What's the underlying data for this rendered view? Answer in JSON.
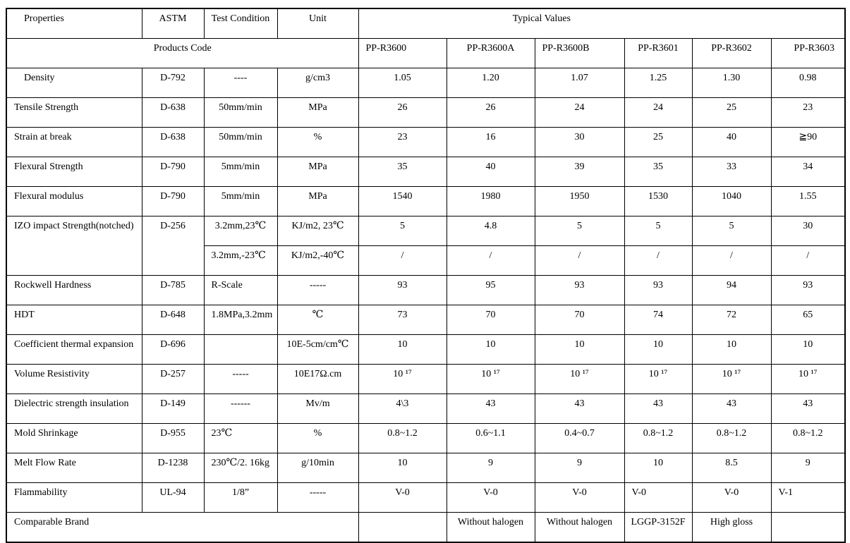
{
  "table": {
    "header": {
      "properties": "Properties",
      "astm": "ASTM",
      "test_condition": "Test Condition",
      "unit": "Unit",
      "typical_values": "Typical Values",
      "products_code_label": "Products Code",
      "product_codes": [
        "PP-R3600",
        "PP-R3600A",
        "PP-R3600B",
        "PP-R3601",
        "PP-R3602",
        "PP-R3603"
      ]
    },
    "rows": [
      {
        "property": "Density",
        "astm": "D-792",
        "test_condition": "----",
        "unit": "g/cm3",
        "values": [
          "1.05",
          "1.20",
          "1.07",
          "1.25",
          "1.30",
          "0.98"
        ]
      },
      {
        "property": "Tensile Strength",
        "astm": "D-638",
        "test_condition": "50mm/min",
        "unit": "MPa",
        "values": [
          "26",
          "26",
          "24",
          "24",
          "25",
          "23"
        ]
      },
      {
        "property": "Strain at break",
        "astm": "D-638",
        "test_condition": "50mm/min",
        "unit": "%",
        "values": [
          "23",
          "16",
          "30",
          "25",
          "40",
          "≧90"
        ]
      },
      {
        "property": "Flexural Strength",
        "astm": "D-790",
        "test_condition": "5mm/min",
        "unit": "MPa",
        "values": [
          "35",
          "40",
          "39",
          "35",
          "33",
          "34"
        ]
      },
      {
        "property": "Flexural modulus",
        "astm": "D-790",
        "test_condition": "5mm/min",
        "unit": "MPa",
        "values": [
          "1540",
          "1980",
          "1950",
          "1530",
          "1040",
          "1.55"
        ]
      },
      {
        "property": "IZO impact Strength(notched)",
        "astm": "D-256",
        "rowspan": 2,
        "test_condition": "3.2mm,23℃",
        "unit": "KJ/m2, 23℃",
        "values": [
          "5",
          "4.8",
          "5",
          "5",
          "5",
          "30"
        ]
      },
      {
        "continuation": true,
        "test_condition": "3.2mm,-23℃",
        "unit": "KJ/m2,-40℃",
        "values": [
          "/",
          "/",
          "/",
          "/",
          "/",
          "/"
        ]
      },
      {
        "property": "Rockwell Hardness",
        "astm": "D-785",
        "test_condition": "R-Scale",
        "unit": "-----",
        "values": [
          "93",
          "95",
          "93",
          "93",
          "94",
          "93"
        ]
      },
      {
        "property": "HDT",
        "astm": "D-648",
        "test_condition": "1.8MPa,3.2mm",
        "unit": "℃",
        "values": [
          "73",
          "70",
          "70",
          "74",
          "72",
          "65"
        ]
      },
      {
        "property": "Coefficient thermal expansion",
        "astm": "D-696",
        "test_condition": "",
        "unit": "10E-5cm/cm℃",
        "values": [
          "10",
          "10",
          "10",
          "10",
          "10",
          "10"
        ]
      },
      {
        "property": "Volume Resistivity",
        "astm": "D-257",
        "test_condition": "-----",
        "unit": "10E17Ω.cm",
        "values": [
          "10 ¹⁷",
          "10 ¹⁷",
          "10 ¹⁷",
          "10 ¹⁷",
          "10 ¹⁷",
          "10 ¹⁷"
        ]
      },
      {
        "property": "Dielectric strength insulation",
        "astm": "D-149",
        "test_condition": "------",
        "unit": "Mv/m",
        "values": [
          "4\\3",
          "43",
          "43",
          "43",
          "43",
          "43"
        ]
      },
      {
        "property": "Mold Shrinkage",
        "astm": "D-955",
        "test_condition": "23℃",
        "unit": "%",
        "values": [
          "0.8~1.2",
          "0.6~1.1",
          "0.4~0.7",
          "0.8~1.2",
          "0.8~1.2",
          "0.8~1.2"
        ]
      },
      {
        "property": "Melt Flow Rate",
        "astm": "D-1238",
        "test_condition": "230℃/2. 16kg",
        "unit": "g/10min",
        "values": [
          "10",
          "9",
          "9",
          "10",
          "8.5",
          "9"
        ]
      },
      {
        "property": "Flammability",
        "astm": "UL-94",
        "test_condition": "1/8”",
        "unit": "-----",
        "values": [
          "V-0",
          "V-0",
          "V-0",
          "V-0",
          "V-0",
          "V-1"
        ]
      },
      {
        "property": "Comparable Brand",
        "span_all": true,
        "values": [
          "",
          "Without halogen",
          "Without halogen",
          "LGGP-3152F",
          "High gloss",
          ""
        ]
      }
    ]
  }
}
